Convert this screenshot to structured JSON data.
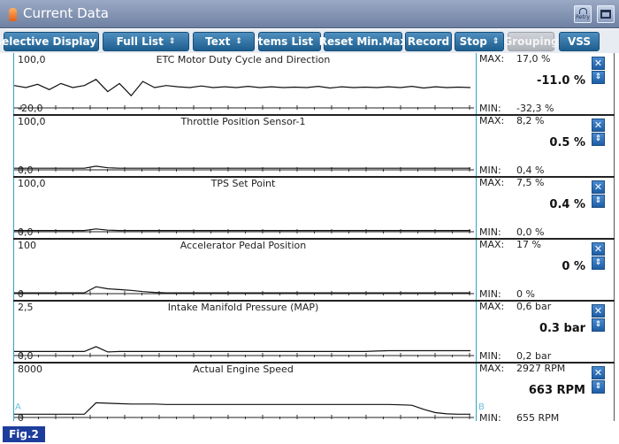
{
  "window": {
    "title": "Current Data",
    "retry_label": "Retry"
  },
  "toolbar": {
    "buttons": [
      {
        "label": "Selective Display",
        "dropdown": true,
        "enabled": true
      },
      {
        "label": "Full List",
        "dropdown": true,
        "enabled": true
      },
      {
        "label": "Text",
        "dropdown": true,
        "enabled": true
      },
      {
        "label": "Items List",
        "dropdown": true,
        "enabled": true
      },
      {
        "label": "Reset Min.Max",
        "dropdown": false,
        "enabled": true
      },
      {
        "label": "Record",
        "dropdown": false,
        "enabled": true
      },
      {
        "label": "Stop",
        "dropdown": true,
        "enabled": true
      },
      {
        "label": "Grouping",
        "dropdown": false,
        "enabled": false
      },
      {
        "label": "VSS",
        "dropdown": false,
        "enabled": true
      }
    ]
  },
  "panels": [
    {
      "title": "ETC Motor Duty Cycle and Direction",
      "scale_max": "100,0",
      "scale_min": "-20,0",
      "max_label": "MAX:",
      "max_value": "17,0 %",
      "current": "-11.0 %",
      "min_label": "MIN:",
      "min_value": "-32,3 %",
      "trace": [
        0.55,
        0.5,
        0.58,
        0.45,
        0.6,
        0.5,
        0.55,
        0.7,
        0.4,
        0.6,
        0.3,
        0.65,
        0.5,
        0.55,
        0.52,
        0.5,
        0.54,
        0.5,
        0.52,
        0.5,
        0.53,
        0.5,
        0.52,
        0.5,
        0.51,
        0.5,
        0.53,
        0.49,
        0.52,
        0.5,
        0.51,
        0.5,
        0.52,
        0.5,
        0.53,
        0.49,
        0.52,
        0.5,
        0.51,
        0.5
      ]
    },
    {
      "title": "Throttle Position Sensor-1",
      "scale_max": "100,0",
      "scale_min": "0,0",
      "max_label": "MAX:",
      "max_value": "8,2 %",
      "current": "0.5 %",
      "min_label": "MIN:",
      "min_value": "0,4 %",
      "trace": [
        0.04,
        0.04,
        0.04,
        0.04,
        0.04,
        0.04,
        0.04,
        0.09,
        0.05,
        0.04,
        0.04,
        0.04,
        0.04,
        0.04,
        0.04,
        0.04,
        0.04,
        0.04,
        0.04,
        0.04,
        0.04,
        0.04,
        0.04,
        0.04,
        0.04,
        0.04,
        0.04,
        0.04,
        0.04,
        0.04,
        0.04,
        0.04,
        0.04,
        0.04,
        0.04,
        0.04,
        0.04,
        0.04,
        0.04,
        0.04
      ]
    },
    {
      "title": "TPS Set Point",
      "scale_max": "100,0",
      "scale_min": "0,0",
      "max_label": "MAX:",
      "max_value": "7,5 %",
      "current": "0.4 %",
      "min_label": "MIN:",
      "min_value": "0,0 %",
      "trace": [
        0.03,
        0.03,
        0.03,
        0.03,
        0.03,
        0.03,
        0.03,
        0.07,
        0.04,
        0.03,
        0.03,
        0.03,
        0.03,
        0.03,
        0.03,
        0.03,
        0.03,
        0.03,
        0.03,
        0.03,
        0.03,
        0.03,
        0.03,
        0.03,
        0.03,
        0.03,
        0.03,
        0.03,
        0.03,
        0.03,
        0.03,
        0.03,
        0.03,
        0.03,
        0.03,
        0.03,
        0.03,
        0.03,
        0.03,
        0.03
      ]
    },
    {
      "title": "Accelerator Pedal Position",
      "scale_max": "100",
      "scale_min": "0",
      "max_label": "MAX:",
      "max_value": "17 %",
      "current": "0 %",
      "min_label": "MIN:",
      "min_value": "0 %",
      "trace": [
        0.02,
        0.02,
        0.02,
        0.02,
        0.02,
        0.02,
        0.02,
        0.17,
        0.12,
        0.1,
        0.08,
        0.05,
        0.03,
        0.02,
        0.02,
        0.02,
        0.02,
        0.02,
        0.02,
        0.02,
        0.02,
        0.02,
        0.02,
        0.02,
        0.02,
        0.02,
        0.02,
        0.02,
        0.02,
        0.02,
        0.02,
        0.02,
        0.02,
        0.02,
        0.02,
        0.02,
        0.02,
        0.02,
        0.02,
        0.02
      ]
    },
    {
      "title": "Intake Manifold Pressure (MAP)",
      "scale_max": "2,5",
      "scale_min": "0,0",
      "max_label": "MAX:",
      "max_value": "0,6 bar",
      "current": "0.3 bar",
      "min_label": "MIN:",
      "min_value": "0,2 bar",
      "trace": [
        0.1,
        0.1,
        0.1,
        0.1,
        0.1,
        0.1,
        0.1,
        0.22,
        0.09,
        0.1,
        0.1,
        0.1,
        0.1,
        0.1,
        0.1,
        0.1,
        0.1,
        0.1,
        0.1,
        0.1,
        0.1,
        0.1,
        0.1,
        0.1,
        0.1,
        0.1,
        0.1,
        0.1,
        0.1,
        0.1,
        0.1,
        0.11,
        0.12,
        0.12,
        0.12,
        0.12,
        0.12,
        0.12,
        0.12,
        0.12
      ]
    },
    {
      "title": "Actual Engine Speed",
      "scale_max": "8000",
      "scale_min": "0",
      "max_label": "MAX:",
      "max_value": "2927 RPM",
      "current": "663 RPM",
      "min_label": "MIN:",
      "min_value": "655 RPM",
      "trace": [
        0.08,
        0.08,
        0.08,
        0.08,
        0.08,
        0.08,
        0.08,
        0.36,
        0.35,
        0.34,
        0.33,
        0.33,
        0.33,
        0.32,
        0.32,
        0.32,
        0.32,
        0.32,
        0.32,
        0.32,
        0.32,
        0.32,
        0.32,
        0.32,
        0.32,
        0.32,
        0.32,
        0.32,
        0.32,
        0.32,
        0.32,
        0.32,
        0.32,
        0.31,
        0.3,
        0.2,
        0.12,
        0.09,
        0.08,
        0.08
      ]
    }
  ],
  "cursors": {
    "a": "A",
    "b": "B"
  },
  "figure_label": "Fig.2",
  "colors": {
    "titlebar": "#7f90b1",
    "button": "#2a6c9e",
    "rule": "#2ea6c7",
    "close": "#1d5ea6"
  }
}
